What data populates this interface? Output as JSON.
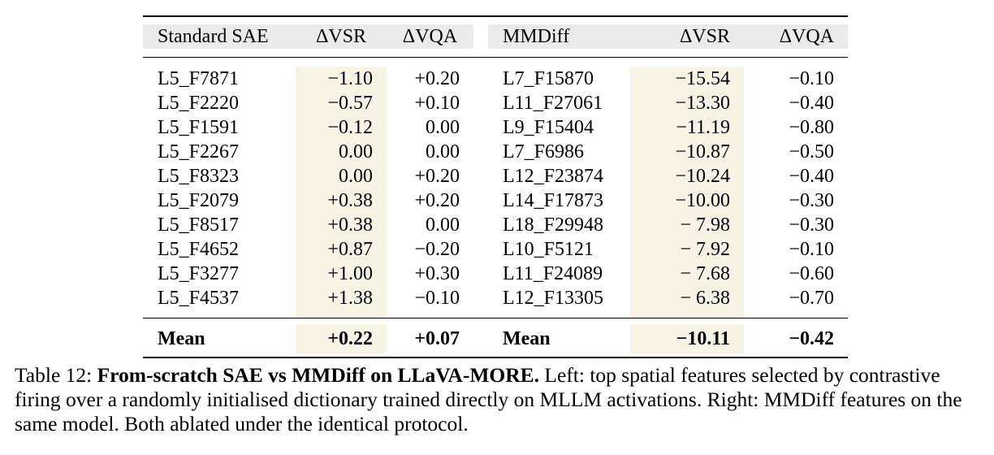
{
  "table": {
    "headers_left": [
      "Standard SAE",
      "ΔVSR",
      "ΔVQA"
    ],
    "headers_right": [
      "MMDiff",
      "ΔVSR",
      "ΔVQA"
    ],
    "rows": [
      {
        "f1": "L5_F7871",
        "vsr1": "−1.10",
        "vqa1": "+0.20",
        "f2": "L7_F15870",
        "vsr2": "−15.54",
        "vqa2": "−0.10"
      },
      {
        "f1": "L5_F2220",
        "vsr1": "−0.57",
        "vqa1": "+0.10",
        "f2": "L11_F27061",
        "vsr2": "−13.30",
        "vqa2": "−0.40"
      },
      {
        "f1": "L5_F1591",
        "vsr1": "−0.12",
        "vqa1": "0.00",
        "f2": "L9_F15404",
        "vsr2": "−11.19",
        "vqa2": "−0.80"
      },
      {
        "f1": "L5_F2267",
        "vsr1": "0.00",
        "vqa1": "0.00",
        "f2": "L7_F6986",
        "vsr2": "−10.87",
        "vqa2": "−0.50"
      },
      {
        "f1": "L5_F8323",
        "vsr1": "0.00",
        "vqa1": "+0.20",
        "f2": "L12_F23874",
        "vsr2": "−10.24",
        "vqa2": "−0.40"
      },
      {
        "f1": "L5_F2079",
        "vsr1": "+0.38",
        "vqa1": "+0.20",
        "f2": "L14_F17873",
        "vsr2": "−10.00",
        "vqa2": "−0.30"
      },
      {
        "f1": "L5_F8517",
        "vsr1": "+0.38",
        "vqa1": "0.00",
        "f2": "L18_F29948",
        "vsr2": "− 7.98",
        "vqa2": "−0.30"
      },
      {
        "f1": "L5_F4652",
        "vsr1": "+0.87",
        "vqa1": "−0.20",
        "f2": "L10_F5121",
        "vsr2": "− 7.92",
        "vqa2": "−0.10"
      },
      {
        "f1": "L5_F3277",
        "vsr1": "+1.00",
        "vqa1": "+0.30",
        "f2": "L11_F24089",
        "vsr2": "− 7.68",
        "vqa2": "−0.60"
      },
      {
        "f1": "L5_F4537",
        "vsr1": "+1.38",
        "vqa1": "−0.10",
        "f2": "L12_F13305",
        "vsr2": "− 6.38",
        "vqa2": "−0.70"
      }
    ],
    "mean": {
      "label1": "Mean",
      "vsr1": "+0.22",
      "vqa1": "+0.07",
      "label2": "Mean",
      "vsr2": "−10.11",
      "vqa2": "−0.42"
    }
  },
  "caption": {
    "prefix": "Table 12: ",
    "bold": "From-scratch SAE vs MMDiff on LLaVA-MORE.",
    "text": " Left: top spatial features selected by contrastive firing over a randomly initialised dictionary trained directly on MLLM activations. Right: MMDiff features on the same model. Both ablated under the identical protocol."
  }
}
